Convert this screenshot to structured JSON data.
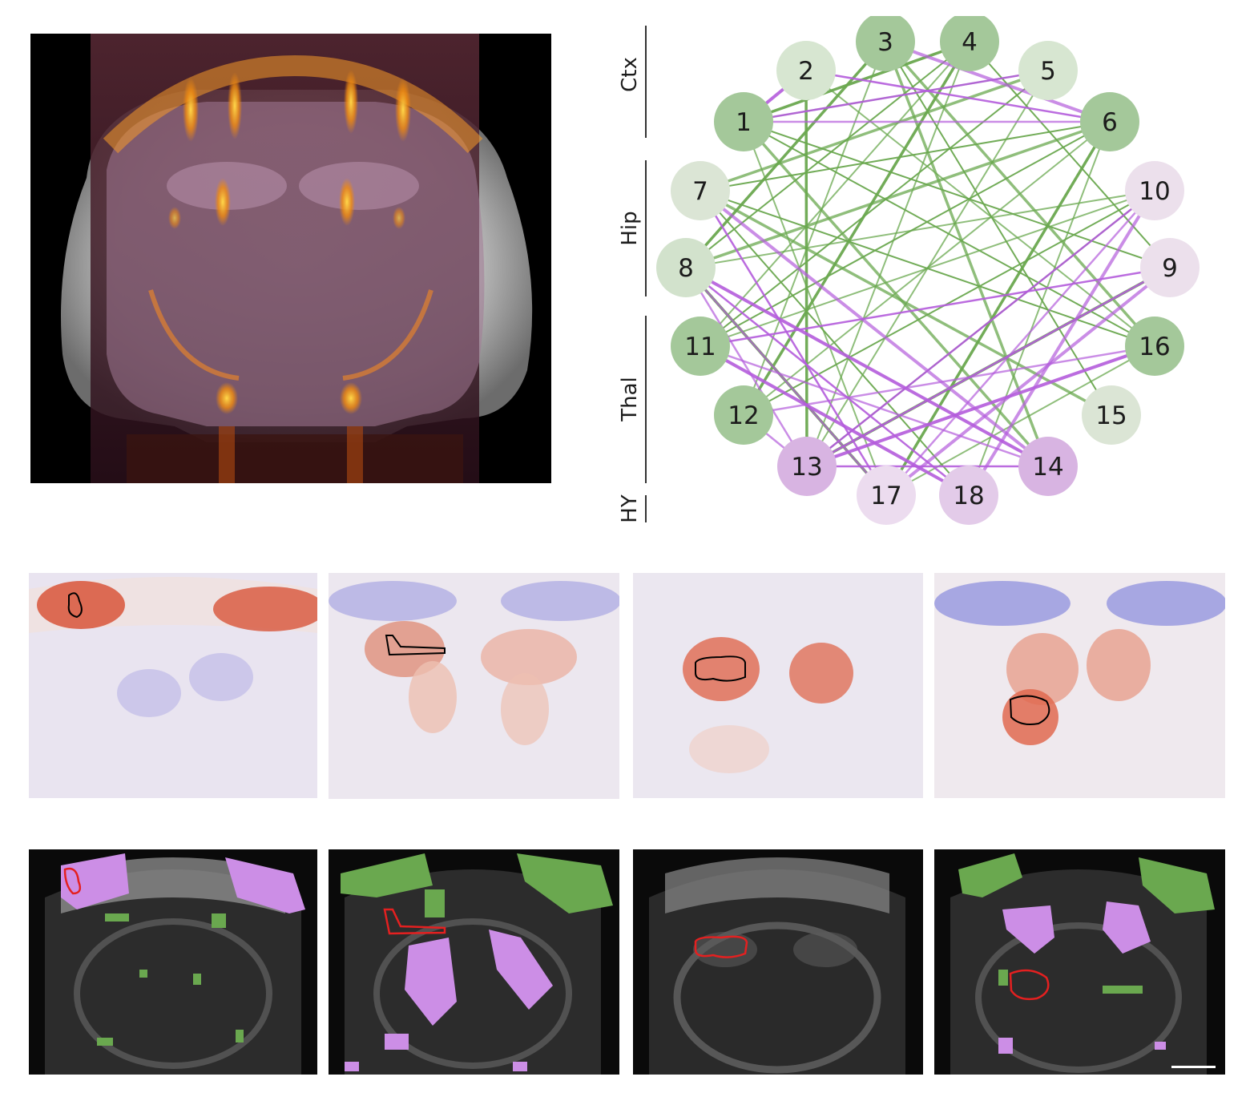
{
  "network": {
    "groups": [
      {
        "label": "Ctx"
      },
      {
        "label": "Hip"
      },
      {
        "label": "Thal"
      },
      {
        "label": "HY"
      }
    ],
    "nodes": [
      {
        "id": "1",
        "fill": "#a4c89a"
      },
      {
        "id": "2",
        "fill": "#d7e6d1"
      },
      {
        "id": "3",
        "fill": "#a4c89a"
      },
      {
        "id": "4",
        "fill": "#a4c89a"
      },
      {
        "id": "5",
        "fill": "#d7e6d1"
      },
      {
        "id": "6",
        "fill": "#a4c89a"
      },
      {
        "id": "7",
        "fill": "#dbe5d5"
      },
      {
        "id": "8",
        "fill": "#d2e2cc"
      },
      {
        "id": "9",
        "fill": "#ece0ec"
      },
      {
        "id": "10",
        "fill": "#ece0ec"
      },
      {
        "id": "11",
        "fill": "#a4c89a"
      },
      {
        "id": "12",
        "fill": "#a4c89a"
      },
      {
        "id": "13",
        "fill": "#d8b4e2"
      },
      {
        "id": "14",
        "fill": "#d8b4e2"
      },
      {
        "id": "15",
        "fill": "#dbe5d5"
      },
      {
        "id": "16",
        "fill": "#a4c89a"
      },
      {
        "id": "17",
        "fill": "#ecdcef"
      },
      {
        "id": "18",
        "fill": "#e3cbe9"
      }
    ],
    "edge_colors": {
      "positive": "#6aa84f",
      "negative": "#b45cdc"
    }
  }
}
